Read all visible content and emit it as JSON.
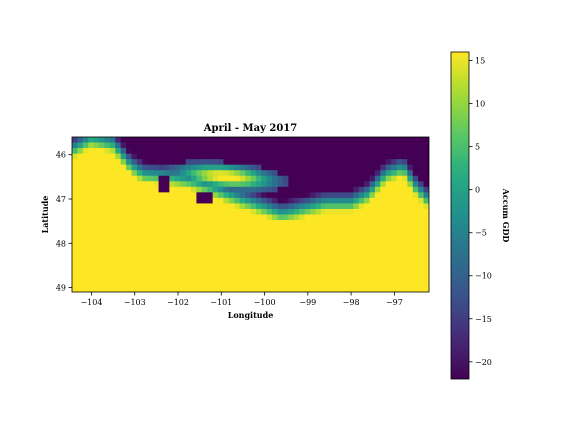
{
  "chart_data": {
    "type": "heatmap",
    "title": "April - May 2017",
    "xlabel": "Longitude",
    "ylabel": "Latitude",
    "xlim": [
      -104.45,
      -96.2
    ],
    "ylim": [
      45.6,
      49.1
    ],
    "y_inverted": true,
    "xticks": [
      -104,
      -103,
      -102,
      -101,
      -100,
      -99,
      -98,
      -97
    ],
    "xtick_labels": [
      "−104",
      "−103",
      "−102",
      "−101",
      "−100",
      "−99",
      "−98",
      "−97"
    ],
    "yticks": [
      46,
      47,
      48,
      49
    ],
    "ytick_labels": [
      "46",
      "47",
      "48",
      "49"
    ],
    "colorbar": {
      "label": "Accum GDD",
      "colormap": "viridis",
      "vmin": -22,
      "vmax": 16,
      "ticks": [
        15,
        10,
        5,
        0,
        -5,
        -10,
        -15,
        -20
      ],
      "tick_labels": [
        "15",
        "10",
        "5",
        "0",
        "−5",
        "−10",
        "−15",
        "−20"
      ]
    },
    "grid": {
      "lon_start": -104.45,
      "lat_start": 45.6,
      "cell_deg": 0.125,
      "cols": 66,
      "rows": 28
    },
    "pattern_description": "Warm (about 16) across most of the region; cold (about -22) over the north-east part; transition band of intermediate values along the boundary.",
    "summary_values": {
      "warm": 16,
      "cold": -22
    }
  }
}
